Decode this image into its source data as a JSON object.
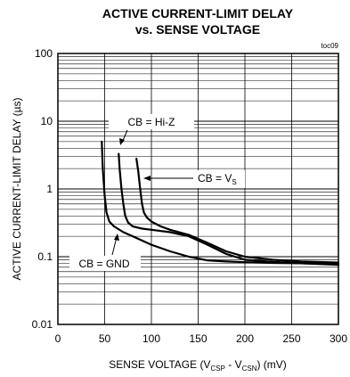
{
  "chart_data": {
    "type": "line",
    "title": "ACTIVE CURRENT-LIMIT DELAY",
    "subtitle": "vs. SENSE VOLTAGE",
    "figure_id": "toc09",
    "xlabel": {
      "main": "SENSE VOLTAGE (V",
      "sub1": "CSP",
      "mid": " - V",
      "sub2": "CSN",
      "end": ") (mV)"
    },
    "ylabel": "ACTIVE CURRENT-LIMIT DELAY (µs)",
    "xlim": [
      0,
      300
    ],
    "ylim": [
      0.01,
      100
    ],
    "yscale": "log",
    "x_ticks": [
      0,
      50,
      100,
      150,
      200,
      250,
      300
    ],
    "x_tick_labels": [
      "0",
      "50",
      "100",
      "150",
      "200",
      "250",
      "300"
    ],
    "y_ticks": [
      0.01,
      0.1,
      1,
      10,
      100
    ],
    "y_tick_labels": [
      "0.01",
      "0.1",
      "1",
      "10",
      "100"
    ],
    "grid": true,
    "series": [
      {
        "name": "CB = GND",
        "x": [
          47,
          48,
          50,
          52,
          55,
          60,
          70,
          80,
          100,
          120,
          140,
          160,
          180,
          200,
          230,
          260,
          300
        ],
        "y": [
          5,
          2,
          0.8,
          0.45,
          0.33,
          0.28,
          0.23,
          0.2,
          0.15,
          0.12,
          0.1,
          0.088,
          0.085,
          0.083,
          0.081,
          0.08,
          0.078
        ]
      },
      {
        "name": "CB = Hi-Z",
        "x": [
          65,
          66,
          68,
          70,
          72,
          75,
          80,
          90,
          100,
          120,
          140,
          160,
          180,
          200,
          230,
          260,
          300
        ],
        "y": [
          3.3,
          2,
          1,
          0.6,
          0.4,
          0.32,
          0.28,
          0.26,
          0.25,
          0.23,
          0.2,
          0.15,
          0.11,
          0.09,
          0.084,
          0.08,
          0.076
        ]
      },
      {
        "name": "CB = VS",
        "x": [
          84,
          86,
          88,
          90,
          92,
          95,
          100,
          110,
          120,
          140,
          160,
          180,
          200,
          230,
          260,
          300
        ],
        "y": [
          2.8,
          1.8,
          1,
          0.6,
          0.45,
          0.38,
          0.33,
          0.28,
          0.25,
          0.21,
          0.16,
          0.12,
          0.1,
          0.09,
          0.085,
          0.082
        ]
      }
    ],
    "annotations": {
      "gnd": "CB = GND",
      "hiz": "CB = Hi-Z",
      "vs_main": "CB = V",
      "vs_sub": "S"
    }
  }
}
